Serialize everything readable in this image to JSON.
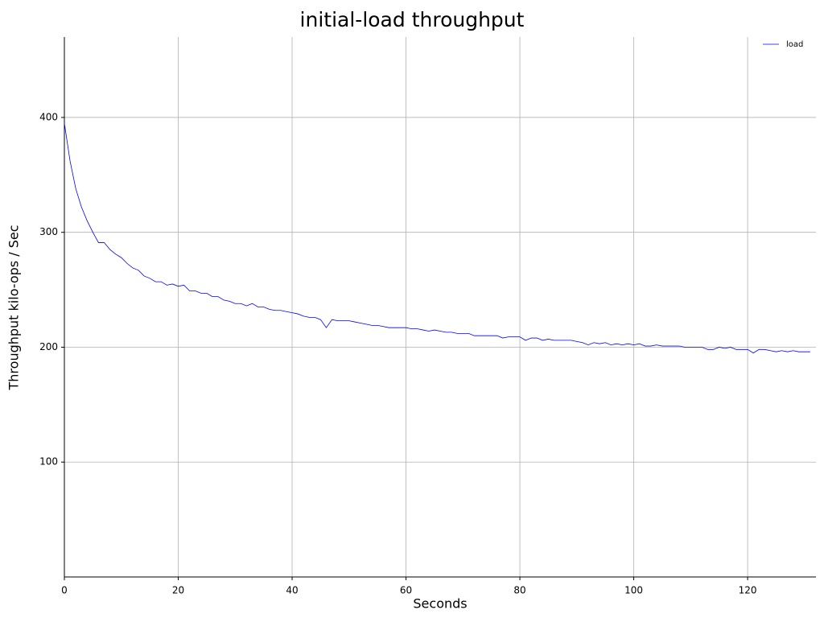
{
  "chart_data": {
    "type": "line",
    "title": "initial-load throughput",
    "x_label": "Seconds",
    "y_label": "Throughput kilo-ops / Sec",
    "x": [
      0,
      1,
      2,
      3,
      4,
      5,
      6,
      7,
      8,
      9,
      10,
      11,
      12,
      13,
      14,
      15,
      16,
      17,
      18,
      19,
      20,
      21,
      22,
      23,
      24,
      25,
      26,
      27,
      28,
      29,
      30,
      31,
      32,
      33,
      34,
      35,
      36,
      37,
      38,
      39,
      40,
      41,
      42,
      43,
      44,
      45,
      46,
      47,
      48,
      49,
      50,
      51,
      52,
      53,
      54,
      55,
      56,
      57,
      58,
      59,
      60,
      61,
      62,
      63,
      64,
      65,
      66,
      67,
      68,
      69,
      70,
      71,
      72,
      73,
      74,
      75,
      76,
      77,
      78,
      79,
      80,
      81,
      82,
      83,
      84,
      85,
      86,
      87,
      88,
      89,
      90,
      91,
      92,
      93,
      94,
      95,
      96,
      97,
      98,
      99,
      100,
      101,
      102,
      103,
      104,
      105,
      106,
      107,
      108,
      109,
      110,
      111,
      112,
      113,
      114,
      115,
      116,
      117,
      118,
      119,
      120,
      121,
      122,
      123,
      124,
      125,
      126,
      127,
      128,
      129,
      130,
      131
    ],
    "series": [
      {
        "name": "load",
        "color": "#0000ff",
        "values": [
          395,
          362,
          338,
          322,
          310,
          300,
          291,
          291,
          285,
          281,
          278,
          273,
          269,
          267,
          262,
          260,
          257,
          257,
          254,
          255,
          253,
          254,
          249,
          249,
          247,
          247,
          244,
          244,
          241,
          240,
          238,
          238,
          236,
          238,
          235,
          235,
          233,
          232,
          232,
          231,
          230,
          229,
          227,
          226,
          226,
          224,
          217,
          224,
          223,
          223,
          223,
          222,
          221,
          220,
          219,
          219,
          218,
          217,
          217,
          217,
          217,
          216,
          216,
          215,
          214,
          215,
          214,
          213,
          213,
          212,
          212,
          212,
          210,
          210,
          210,
          210,
          210,
          208,
          209,
          209,
          209,
          206,
          208,
          208,
          206,
          207,
          206,
          206,
          206,
          206,
          205,
          204,
          202,
          204,
          203,
          204,
          202,
          203,
          202,
          203,
          202,
          203,
          201,
          201,
          202,
          201,
          201,
          201,
          201,
          200,
          200,
          200,
          200,
          198,
          198,
          200,
          199,
          200,
          198,
          198,
          198,
          195,
          198,
          198,
          197,
          196,
          197,
          196,
          197,
          196,
          196,
          196
        ]
      }
    ],
    "xlim": [
      0,
      132
    ],
    "ylim": [
      0,
      470
    ],
    "xticks": [
      0,
      20,
      40,
      60,
      80,
      100,
      120
    ],
    "yticks": [
      100,
      200,
      300,
      400
    ],
    "grid": true,
    "legend": "upper right"
  }
}
